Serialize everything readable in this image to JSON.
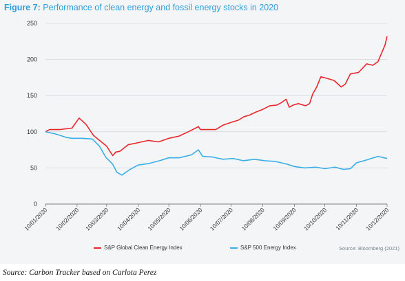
{
  "title_lead": "Figure 7:",
  "title_rest": "Performance of clean energy and fossil energy stocks in 2020",
  "source_right": "Source: Bloomberg (2021)",
  "footer": "Source: Carbon Tracker based on Carlota Perez",
  "colors": {
    "clean": "#e8262b",
    "fossil": "#3aaee6",
    "title": "#2f9fdc"
  },
  "chart_data": {
    "type": "line",
    "title": "Performance of clean energy and fossil energy stocks in 2020",
    "xlabel": "",
    "ylabel": "",
    "ylim": [
      0,
      250
    ],
    "yticks": [
      0,
      50,
      100,
      150,
      200,
      250
    ],
    "grid": true,
    "legend_position": "bottom",
    "x_tick_labels": [
      "10/01/2020",
      "10/02/2020",
      "10/03/2020",
      "10/04/2020",
      "10/05/2020",
      "10/06/2020",
      "10/07/2020",
      "10/08/2020",
      "10/09/2020",
      "10/10/2020",
      "10/11/2020",
      "10/12/2020"
    ],
    "series": [
      {
        "name": "S&P Global Clean Energy Index",
        "color": "#e8262b",
        "x": [
          "10/01/2020",
          "14/01/2020",
          "24/01/2020",
          "05/02/2020",
          "12/02/2020",
          "19/02/2020",
          "26/02/2020",
          "04/03/2020",
          "10/03/2020",
          "16/03/2020",
          "19/03/2020",
          "23/03/2020",
          "31/03/2020",
          "10/04/2020",
          "20/04/2020",
          "30/04/2020",
          "10/05/2020",
          "20/05/2020",
          "29/05/2020",
          "08/06/2020",
          "10/06/2020",
          "18/06/2020",
          "25/06/2020",
          "02/07/2020",
          "10/07/2020",
          "17/07/2020",
          "23/07/2020",
          "28/07/2020",
          "03/08/2020",
          "10/08/2020",
          "17/08/2020",
          "24/08/2020",
          "28/08/2020",
          "02/09/2020",
          "05/09/2020",
          "09/09/2020",
          "14/09/2020",
          "21/09/2020",
          "25/09/2020",
          "28/09/2020",
          "02/10/2020",
          "06/10/2020",
          "12/10/2020",
          "19/10/2020",
          "26/10/2020",
          "30/10/2020",
          "04/11/2020",
          "12/11/2020",
          "20/11/2020",
          "26/11/2020",
          "01/12/2020",
          "08/12/2020",
          "10/12/2020"
        ],
        "values": [
          100,
          103,
          103,
          105,
          119,
          110,
          95,
          87,
          80,
          67,
          72,
          73,
          82,
          85,
          88,
          86,
          91,
          94,
          100,
          107,
          103,
          103,
          103,
          109,
          113,
          116,
          121,
          123,
          127,
          131,
          136,
          137,
          140,
          145,
          134,
          137,
          139,
          136,
          139,
          152,
          162,
          176,
          174,
          171,
          162,
          166,
          180,
          182,
          194,
          192,
          197,
          220,
          232
        ]
      },
      {
        "name": "S&P 500 Energy Index",
        "color": "#3aaee6",
        "x": [
          "10/01/2020",
          "20/01/2020",
          "31/01/2020",
          "05/02/2020",
          "15/02/2020",
          "25/02/2020",
          "03/03/2020",
          "09/03/2020",
          "16/03/2020",
          "20/03/2020",
          "25/03/2020",
          "02/04/2020",
          "10/04/2020",
          "20/04/2020",
          "01/05/2020",
          "10/05/2020",
          "20/05/2020",
          "01/06/2020",
          "08/06/2020",
          "12/06/2020",
          "22/06/2020",
          "02/07/2020",
          "12/07/2020",
          "22/07/2020",
          "02/08/2020",
          "12/08/2020",
          "22/08/2020",
          "01/09/2020",
          "10/09/2020",
          "20/09/2020",
          "01/10/2020",
          "10/10/2020",
          "20/10/2020",
          "28/10/2020",
          "04/11/2020",
          "10/11/2020",
          "20/11/2020",
          "01/12/2020",
          "10/12/2020"
        ],
        "values": [
          100,
          97,
          92,
          91,
          91,
          90,
          80,
          65,
          55,
          44,
          40,
          48,
          54,
          56,
          60,
          64,
          64,
          68,
          75,
          66,
          65,
          62,
          63,
          60,
          62,
          60,
          59,
          56,
          52,
          50,
          51,
          49,
          51,
          48,
          49,
          57,
          61,
          66,
          63
        ]
      }
    ]
  }
}
